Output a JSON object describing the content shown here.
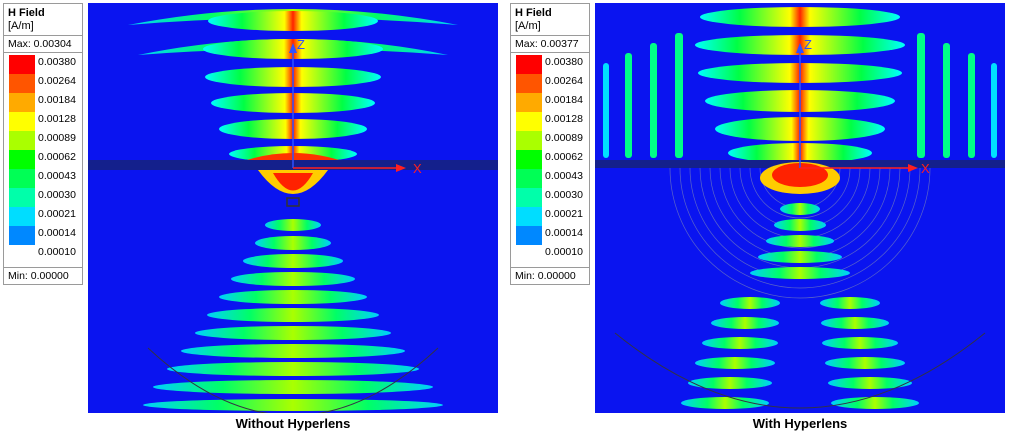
{
  "panels": [
    {
      "legend": {
        "title": "H Field",
        "unit": "[A/m]",
        "max": "Max: 0.00304",
        "min": "Min: 0.00000"
      },
      "caption": "Without Hyperlens",
      "axes": {
        "z": "Z",
        "x": "X"
      }
    },
    {
      "legend": {
        "title": "H Field",
        "unit": "[A/m]",
        "max": "Max: 0.00377",
        "min": "Min: 0.00000"
      },
      "caption": "With Hyperlens",
      "axes": {
        "z": "Z",
        "x": "X"
      }
    }
  ],
  "scale": {
    "levels": [
      "0.00380",
      "0.00264",
      "0.00184",
      "0.00128",
      "0.00089",
      "0.00062",
      "0.00043",
      "0.00030",
      "0.00021",
      "0.00014",
      "0.00010"
    ],
    "colors": [
      "#ff0000",
      "#ff5500",
      "#ffaa00",
      "#ffff00",
      "#aaff00",
      "#00ff00",
      "#00ff55",
      "#00ffaa",
      "#00ddff",
      "#0088ff",
      "#0000ff"
    ]
  },
  "colors": {
    "background_field": "#0a14f0",
    "axis": "#ff2020",
    "axis_blue": "#3050ff"
  }
}
